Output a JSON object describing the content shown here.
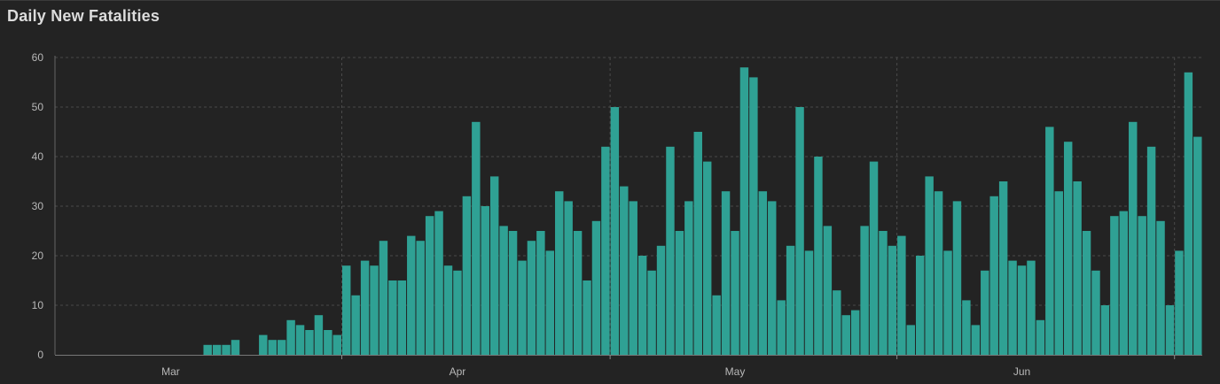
{
  "chart_data": {
    "type": "bar",
    "title": "Daily New Fatalities",
    "xlabel": "",
    "ylabel": "",
    "ylim": [
      0,
      60
    ],
    "yticks": [
      0,
      10,
      20,
      30,
      40,
      50,
      60
    ],
    "x_ticks": [
      {
        "label": "Mar",
        "index": 12
      },
      {
        "label": "Apr",
        "index": 43
      },
      {
        "label": "May",
        "index": 73
      },
      {
        "label": "Jun",
        "index": 104
      }
    ],
    "values": [
      0,
      0,
      0,
      0,
      0,
      0,
      0,
      0,
      0,
      0,
      0,
      0,
      0,
      0,
      0,
      0,
      2,
      2,
      2,
      3,
      0,
      0,
      4,
      3,
      3,
      7,
      6,
      5,
      8,
      5,
      4,
      18,
      12,
      19,
      18,
      23,
      15,
      15,
      24,
      23,
      28,
      29,
      18,
      17,
      32,
      47,
      30,
      36,
      26,
      25,
      19,
      23,
      25,
      21,
      33,
      31,
      25,
      15,
      27,
      42,
      50,
      34,
      31,
      20,
      17,
      22,
      42,
      25,
      31,
      45,
      39,
      12,
      33,
      25,
      58,
      56,
      33,
      31,
      11,
      22,
      50,
      21,
      40,
      26,
      13,
      8,
      9,
      26,
      39,
      25,
      22,
      24,
      6,
      20,
      36,
      33,
      21,
      31,
      11,
      6,
      17,
      32,
      35,
      19,
      18,
      19,
      7,
      46,
      33,
      43,
      35,
      25,
      17,
      10,
      28,
      29,
      47,
      28,
      42,
      27,
      10,
      21,
      57,
      44
    ],
    "colors": {
      "bar": "#2fa194",
      "background": "#232323",
      "grid": "#4a4a4a"
    },
    "grid": true
  }
}
